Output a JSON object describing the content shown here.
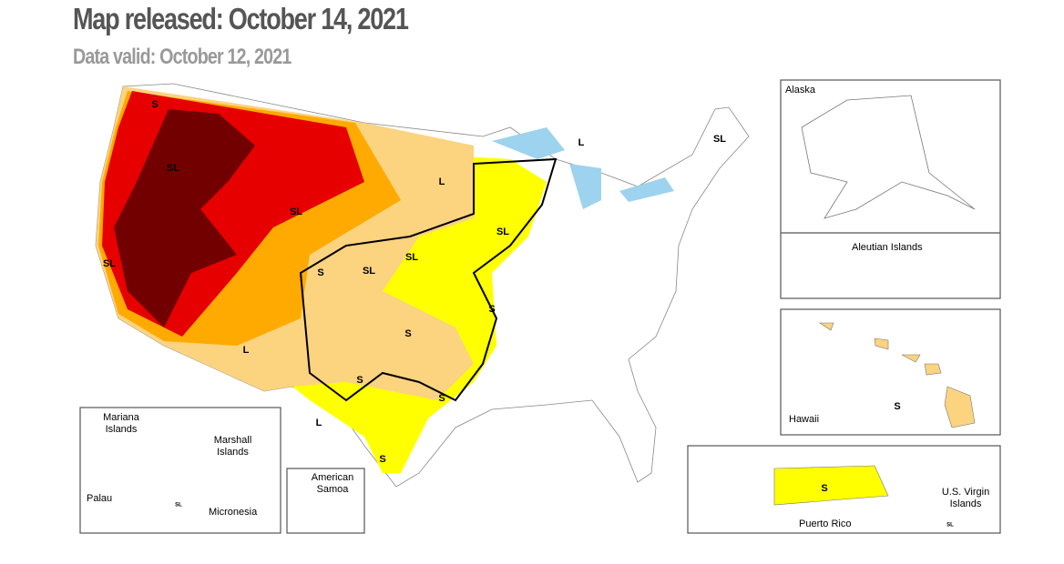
{
  "header": {
    "title": "Map released: October 14, 2021",
    "subtitle": "Data valid: October 12, 2021"
  },
  "insets": {
    "alaska": "Alaska",
    "aleutian": "Aleutian Islands",
    "hawaii": "Hawaii",
    "puerto_rico": "Puerto Rico",
    "virgin_islands": "U.S. Virgin Islands",
    "mariana": "Mariana Islands",
    "marshall": "Marshall Islands",
    "palau": "Palau",
    "micronesia": "Micronesia",
    "samoa": "American Samoa"
  },
  "impact_labels": [
    "S",
    "SL",
    "SL",
    "SL",
    "L",
    "S",
    "SL",
    "SL",
    "L",
    "SL",
    "L",
    "SL",
    "S",
    "S",
    "S",
    "S",
    "L",
    "S",
    "S",
    "S",
    "SL",
    "SL"
  ]
}
